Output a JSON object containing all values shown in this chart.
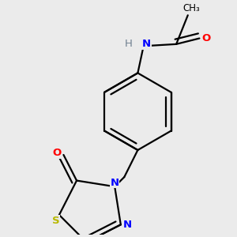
{
  "background_color": "#ebebeb",
  "atom_colors": {
    "C": "#000000",
    "H": "#708090",
    "N": "#0000ff",
    "O": "#ff0000",
    "S": "#b8b800"
  },
  "bond_color": "#000000",
  "bond_width": 1.6,
  "figsize": [
    3.0,
    3.0
  ],
  "dpi": 100
}
